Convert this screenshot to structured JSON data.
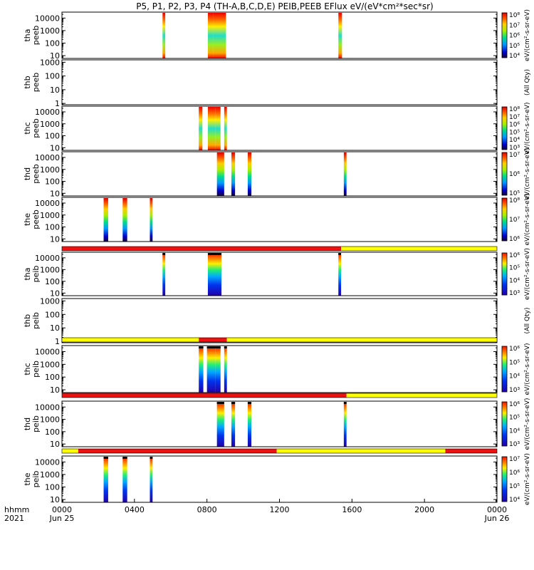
{
  "chart_data": {
    "type": "heatmap",
    "title": "P5, P1, P2, P3, P4 (TH-A,B,C,D,E) PEIB,PEEB EFlux eV/(eV*cm²*sec*sr)",
    "xlabel_lines": [
      "hhmm",
      "2021"
    ],
    "x_ticks": [
      "0000",
      "0400",
      "0800",
      "1200",
      "1600",
      "2000",
      "0000"
    ],
    "x_tick_hours": [
      0,
      4,
      8,
      12,
      16,
      20,
      24
    ],
    "date_labels": [
      {
        "hour": 0,
        "text": "Jun 25"
      },
      {
        "hour": 24,
        "text": "Jun 26"
      }
    ],
    "xlim_hours": [
      0,
      24
    ],
    "colorbar_label": "eV/(cm²-s-sr-eV)",
    "colors": {
      "flag_red": "#ee1111",
      "flag_yellow": "#ffff00",
      "frame": "#000000"
    },
    "panels": [
      {
        "name": "tha peeb",
        "label_lines": [
          "tha",
          "peeb"
        ],
        "y_ticks": [
          "10000",
          "1000",
          "100",
          "10"
        ],
        "y_log": [
          10,
          10000
        ],
        "ylim_log": [
          6,
          30000
        ],
        "cbar_ticks": [
          "10⁸",
          "10⁷",
          "10⁶",
          "10⁵",
          "10⁴"
        ],
        "cbar_side": "eV/(cm²-s-sr-eV)",
        "bursts": [
          [
            5.55,
            5.7
          ],
          [
            8.05,
            8.35
          ],
          [
            8.35,
            9.05
          ],
          [
            15.25,
            15.45
          ]
        ],
        "mode": "ee"
      },
      {
        "name": "thb peeb",
        "label_lines": [
          "thb",
          "peeb"
        ],
        "y_ticks": [
          "1000",
          "100",
          "10",
          "1"
        ],
        "y_log": [
          1,
          1000
        ],
        "ylim_log": [
          0.8,
          1500
        ],
        "cbar_ticks": [],
        "cbar_side": "(All Qty)",
        "bursts": [],
        "mode": "empty"
      },
      {
        "name": "thc peeb",
        "label_lines": [
          "thc",
          "peeb"
        ],
        "y_ticks": [
          "10000",
          "1000",
          "100",
          "10"
        ],
        "y_log": [
          10,
          10000
        ],
        "ylim_log": [
          6,
          30000
        ],
        "cbar_ticks": [
          "10⁸",
          "10⁷",
          "10⁶",
          "10⁵",
          "10⁴",
          "10³"
        ],
        "cbar_side": "eV/(cm²-s-sr-eV)",
        "bursts": [
          [
            7.55,
            7.75
          ],
          [
            8.05,
            8.45
          ],
          [
            8.45,
            8.75
          ],
          [
            8.95,
            9.1
          ]
        ],
        "mode": "ee"
      },
      {
        "name": "thd peeb",
        "label_lines": [
          "thd",
          "peeb"
        ],
        "y_ticks": [
          "10000",
          "1000",
          "100",
          "10"
        ],
        "y_log": [
          10,
          10000
        ],
        "ylim_log": [
          6,
          30000
        ],
        "cbar_ticks": [
          "10⁷",
          "10⁶",
          "10⁵"
        ],
        "cbar_side": "eV/(cm²-s-sr-eV)",
        "bursts": [
          [
            8.55,
            8.95
          ],
          [
            9.35,
            9.55
          ],
          [
            10.25,
            10.45
          ],
          [
            15.55,
            15.7
          ]
        ],
        "mode": "ee"
      },
      {
        "name": "the peeb",
        "label_lines": [
          "the",
          "peeb"
        ],
        "y_ticks": [
          "10000",
          "1000",
          "100",
          "10"
        ],
        "y_log": [
          10,
          10000
        ],
        "ylim_log": [
          6,
          30000
        ],
        "cbar_ticks": [
          "10⁸",
          "10⁷",
          "10⁶"
        ],
        "cbar_side": "eV/(cm²-s-sr-eV)",
        "bursts": [
          [
            2.3,
            2.55
          ],
          [
            3.35,
            3.6
          ],
          [
            4.85,
            5.0
          ]
        ],
        "mode": "ee"
      },
      {
        "name": "tha peib",
        "label_lines": [
          "tha",
          "peib"
        ],
        "y_ticks": [
          "10000",
          "1000",
          "100",
          "10"
        ],
        "y_log": [
          10,
          10000
        ],
        "ylim_log": [
          6,
          30000
        ],
        "cbar_ticks": [
          "10⁶",
          "10⁵",
          "10⁴",
          "10³"
        ],
        "cbar_side": "eV/(cm²-s-sr-eV)",
        "bursts": [
          [
            5.55,
            5.7
          ],
          [
            8.05,
            8.8
          ],
          [
            15.25,
            15.4
          ]
        ],
        "mode": "ion",
        "flag_bar": [
          [
            0,
            15.4,
            "red"
          ],
          [
            15.4,
            24,
            "yellow"
          ]
        ]
      },
      {
        "name": "thb peib",
        "label_lines": [
          "thb",
          "peib"
        ],
        "y_ticks": [
          "1000",
          "100",
          "10",
          "1"
        ],
        "y_log": [
          1,
          1000
        ],
        "ylim_log": [
          0.8,
          1500
        ],
        "cbar_ticks": [],
        "cbar_side": "(All Qty)",
        "bursts": [],
        "mode": "empty"
      },
      {
        "name": "thc peib",
        "label_lines": [
          "thc",
          "peib"
        ],
        "y_ticks": [
          "10000",
          "1000",
          "100",
          "10"
        ],
        "y_log": [
          10,
          10000
        ],
        "ylim_log": [
          6,
          30000
        ],
        "cbar_ticks": [
          "10⁶",
          "10⁵",
          "10⁴",
          "10³"
        ],
        "cbar_side": "eV/(cm²-s-sr-eV)",
        "bursts": [
          [
            7.55,
            7.8
          ],
          [
            8.0,
            8.45
          ],
          [
            8.45,
            8.75
          ],
          [
            8.95,
            9.1
          ]
        ],
        "mode": "ion",
        "flag_bar": [
          [
            0,
            7.55,
            "yellow"
          ],
          [
            7.55,
            9.1,
            "red"
          ],
          [
            9.1,
            24,
            "yellow"
          ]
        ]
      },
      {
        "name": "thd peib",
        "label_lines": [
          "thd",
          "peib"
        ],
        "y_ticks": [
          "10000",
          "1000",
          "100",
          "10"
        ],
        "y_log": [
          10,
          10000
        ],
        "ylim_log": [
          6,
          30000
        ],
        "cbar_ticks": [
          "10⁶",
          "10⁵",
          "10⁴",
          "10³"
        ],
        "cbar_side": "eV/(cm²-s-sr-eV)",
        "bursts": [
          [
            8.55,
            8.95
          ],
          [
            9.35,
            9.55
          ],
          [
            10.25,
            10.45
          ],
          [
            15.55,
            15.7
          ]
        ],
        "mode": "ion",
        "flag_bar": [
          [
            0,
            15.7,
            "red"
          ],
          [
            15.7,
            24,
            "yellow"
          ]
        ]
      },
      {
        "name": "the peib",
        "label_lines": [
          "the",
          "peib"
        ],
        "y_ticks": [
          "10000",
          "1000",
          "100",
          "10"
        ],
        "y_log": [
          10,
          10000
        ],
        "ylim_log": [
          6,
          30000
        ],
        "cbar_ticks": [
          "10⁷",
          "10⁶",
          "10⁵",
          "10⁴"
        ],
        "cbar_side": "eV/(cm²-s-sr-eV)",
        "bursts": [
          [
            2.3,
            2.55
          ],
          [
            3.35,
            3.6
          ],
          [
            4.85,
            5.0
          ]
        ],
        "mode": "ion",
        "flag_bar": [
          [
            0,
            0.9,
            "yellow"
          ],
          [
            0.9,
            11.85,
            "red"
          ],
          [
            11.85,
            21.15,
            "yellow"
          ],
          [
            21.15,
            24,
            "red"
          ]
        ]
      }
    ]
  }
}
